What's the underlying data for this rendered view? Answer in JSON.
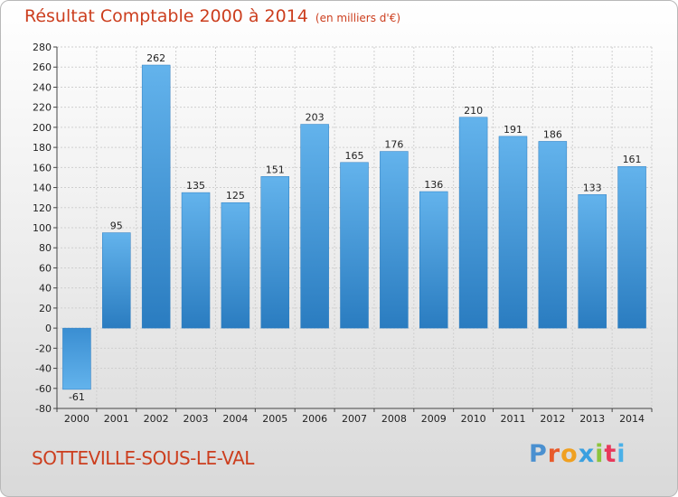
{
  "header": {
    "title": "Résultat Comptable 2000 à 2014",
    "unit": "(en milliers d'€)"
  },
  "footer": {
    "city": "SOTTEVILLE-SOUS-LE-VAL",
    "logo": [
      "P",
      "r",
      "o",
      "x",
      "i",
      "t",
      "i"
    ],
    "logo_colors": [
      "#4a90d0",
      "#e85a2a",
      "#f0a020",
      "#3aa0e0",
      "#8cc43c",
      "#e8385a",
      "#4ab0e8"
    ]
  },
  "colors": {
    "bar_light": "#63b3ec",
    "bar_dark": "#2a7cc0",
    "grid": "#cfcfcf",
    "title": "#cc3e1e"
  },
  "chart_data": {
    "type": "bar",
    "title": "Résultat Comptable 2000 à 2014",
    "xlabel": "",
    "ylabel": "",
    "categories": [
      "2000",
      "2001",
      "2002",
      "2003",
      "2004",
      "2005",
      "2006",
      "2007",
      "2008",
      "2009",
      "2010",
      "2011",
      "2012",
      "2013",
      "2014"
    ],
    "values": [
      -61,
      95,
      262,
      135,
      125,
      151,
      203,
      165,
      176,
      136,
      210,
      191,
      186,
      133,
      161
    ],
    "ylim": [
      -80,
      280
    ],
    "ytick_step": 20,
    "grid": true,
    "legend": "none"
  }
}
